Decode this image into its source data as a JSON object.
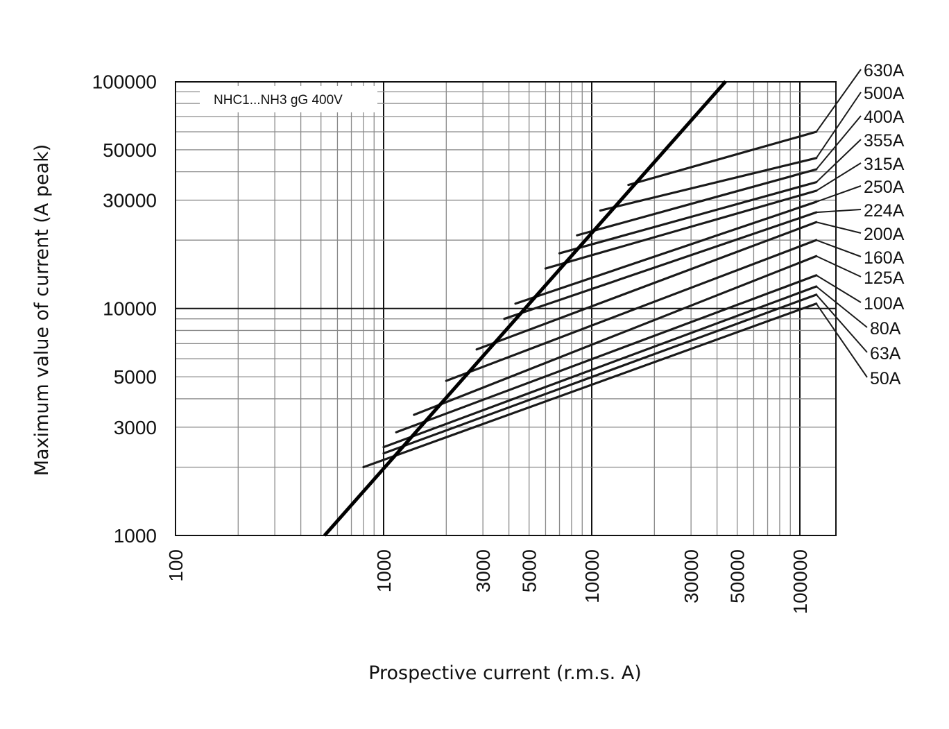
{
  "chart_data": {
    "type": "line",
    "title": "",
    "annotation": "NHC1...NH3 gG 400V",
    "xlabel": "Prospective current (r.m.s. A)",
    "ylabel": "Maximum value of current (A peak)",
    "x_scale": "log",
    "y_scale": "log",
    "xlim": [
      100,
      180000
    ],
    "ylim": [
      1000,
      100000
    ],
    "grid": true,
    "x_tick_labels": [
      "100",
      "1000",
      "3000",
      "5000",
      "10000",
      "30000",
      "50000",
      "100000"
    ],
    "y_tick_labels": [
      "100000",
      "50000",
      "30000",
      "10000",
      "5000",
      "3000",
      "1000"
    ],
    "x_ticks": [
      100,
      1000,
      3000,
      5000,
      10000,
      30000,
      50000,
      100000
    ],
    "y_ticks": [
      100000,
      50000,
      30000,
      10000,
      5000,
      3000,
      1000
    ],
    "max_asymmetric_line": {
      "x": [
        520,
        44000
      ],
      "y": [
        1000,
        100000
      ]
    },
    "series": [
      {
        "name": "630A",
        "x": [
          15000,
          120000
        ],
        "y": [
          35000,
          60000
        ]
      },
      {
        "name": "500A",
        "x": [
          11000,
          120000
        ],
        "y": [
          27000,
          46000
        ]
      },
      {
        "name": "400A",
        "x": [
          8500,
          120000
        ],
        "y": [
          21000,
          41000
        ]
      },
      {
        "name": "355A",
        "x": [
          7000,
          120000
        ],
        "y": [
          17500,
          36000
        ]
      },
      {
        "name": "315A",
        "x": [
          6000,
          120000
        ],
        "y": [
          15000,
          33000
        ]
      },
      {
        "name": "250A",
        "x": [
          4300,
          120000
        ],
        "y": [
          10500,
          29500
        ]
      },
      {
        "name": "224A",
        "x": [
          3800,
          120000
        ],
        "y": [
          9000,
          26500
        ]
      },
      {
        "name": "200A",
        "x": [
          2800,
          120000
        ],
        "y": [
          6600,
          24000
        ]
      },
      {
        "name": "160A",
        "x": [
          2000,
          120000
        ],
        "y": [
          4800,
          20000
        ]
      },
      {
        "name": "125A",
        "x": [
          1400,
          120000
        ],
        "y": [
          3400,
          17000
        ]
      },
      {
        "name": "100A",
        "x": [
          1150,
          120000
        ],
        "y": [
          2850,
          14000
        ]
      },
      {
        "name": "80A",
        "x": [
          1000,
          120000
        ],
        "y": [
          2450,
          12500
        ]
      },
      {
        "name": "63A",
        "x": [
          1000,
          120000
        ],
        "y": [
          2300,
          11500
        ]
      },
      {
        "name": "50A",
        "x": [
          800,
          120000
        ],
        "y": [
          2000,
          10500
        ]
      }
    ]
  }
}
